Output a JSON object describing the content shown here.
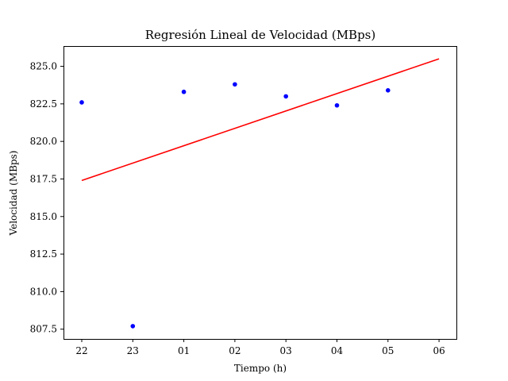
{
  "chart_data": {
    "type": "scatter",
    "title": "Regresión Lineal de Velocidad (MBps)",
    "xlabel": "Tiempo (h)",
    "ylabel": "Velocidad (MBps)",
    "x_tick_labels": [
      "22",
      "23",
      "01",
      "02",
      "03",
      "04",
      "05",
      "06"
    ],
    "y_tick_labels": [
      "807.5",
      "810.0",
      "812.5",
      "815.0",
      "817.5",
      "820.0",
      "822.5",
      "825.0"
    ],
    "y_ticks": [
      807.5,
      810.0,
      812.5,
      815.0,
      817.5,
      820.0,
      822.5,
      825.0
    ],
    "ylim": [
      806.85,
      826.35
    ],
    "grid": false,
    "series": [
      {
        "kind": "points",
        "color": "#0000ff",
        "points": [
          {
            "x": "22",
            "y": 822.6
          },
          {
            "x": "23",
            "y": 807.7
          },
          {
            "x": "01",
            "y": 823.3
          },
          {
            "x": "02",
            "y": 823.8
          },
          {
            "x": "03",
            "y": 823.0
          },
          {
            "x": "04",
            "y": 822.4
          },
          {
            "x": "05",
            "y": 823.4
          }
        ]
      },
      {
        "kind": "line",
        "color": "#ff0000",
        "points": [
          {
            "x": "22",
            "y": 817.4
          },
          {
            "x": "06",
            "y": 825.5
          }
        ]
      }
    ]
  }
}
